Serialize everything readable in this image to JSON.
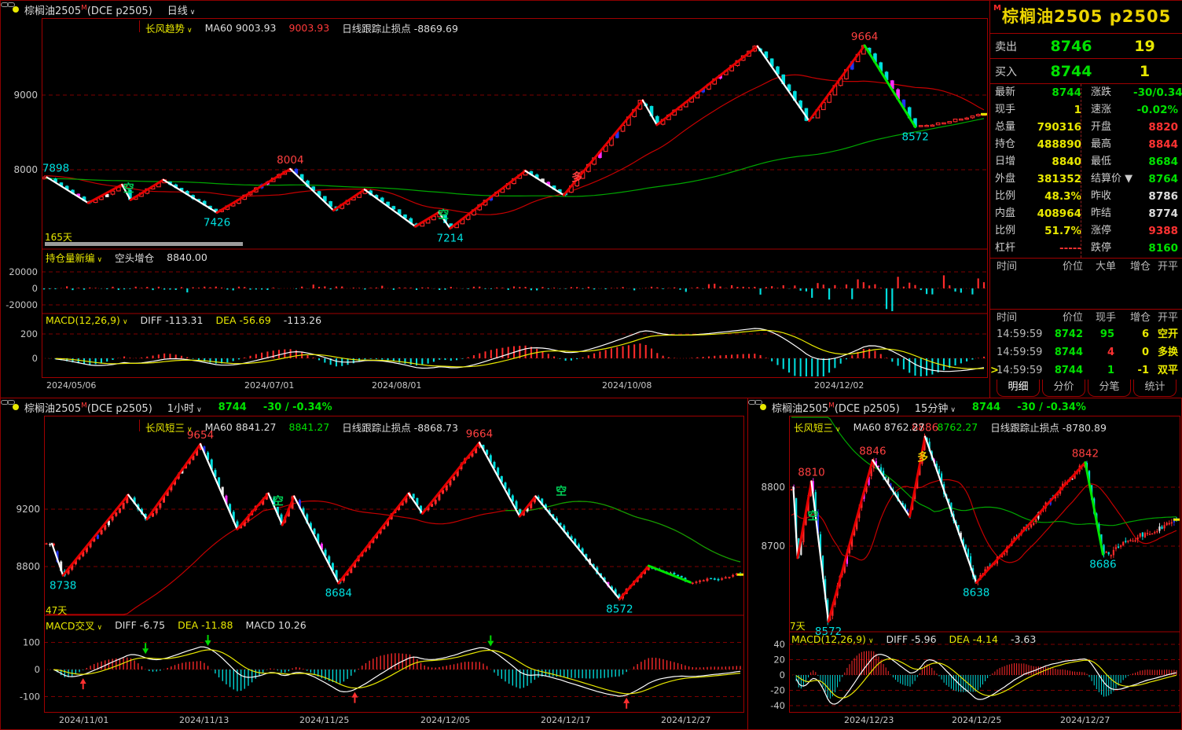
{
  "top": {
    "title": "棕榈油2505",
    "m": "M",
    "title_paren": "(DCE p2505)",
    "period": "日线",
    "ind": {
      "name": "长风趋势",
      "ma": "MA60 9003.93",
      "ma_val": "9003.93",
      "ma_val_color": "#FF3A3A",
      "stop": "日线跟踪止损点 -8869.69"
    },
    "window_label": "165天",
    "y_ticks": [
      {
        "p": 9000,
        "label": "9000"
      },
      {
        "p": 8000,
        "label": "8000"
      }
    ],
    "dates": [
      "2024/05/06",
      "2024/07/01",
      "2024/08/01",
      "2024/10/08",
      "2024/12/02"
    ],
    "pivots": [
      [
        0.003,
        7900,
        ""
      ],
      [
        0.047,
        7555,
        "W"
      ],
      [
        0.083,
        7800,
        "R"
      ],
      [
        0.092,
        7595,
        "W"
      ],
      [
        0.127,
        7865,
        "R"
      ],
      [
        0.184,
        7426,
        "W"
      ],
      [
        0.262,
        8010,
        "R"
      ],
      [
        0.308,
        7455,
        "W"
      ],
      [
        0.341,
        7735,
        "R"
      ],
      [
        0.395,
        7240,
        "W"
      ],
      [
        0.42,
        7430,
        "R"
      ],
      [
        0.432,
        7214,
        "W"
      ],
      [
        0.512,
        7985,
        "R"
      ],
      [
        0.553,
        7660,
        "W"
      ],
      [
        0.637,
        8930,
        "R"
      ],
      [
        0.652,
        8600,
        "W"
      ],
      [
        0.759,
        9655,
        "R"
      ],
      [
        0.814,
        8655,
        "W"
      ],
      [
        0.873,
        9664,
        "R"
      ],
      [
        0.927,
        8572,
        "G"
      ],
      [
        1.0,
        8744,
        ""
      ]
    ],
    "labels": [
      {
        "t": "7898",
        "xf": 0.003,
        "p": 7898,
        "c": "cyan",
        "pos": "a"
      },
      {
        "t": "7426",
        "xf": 0.184,
        "p": 7426,
        "c": "cyan",
        "pos": "b"
      },
      {
        "t": "8004",
        "xf": 0.262,
        "p": 8010,
        "c": "red",
        "pos": "a"
      },
      {
        "t": "7214",
        "xf": 0.432,
        "p": 7214,
        "c": "cyan",
        "pos": "b"
      },
      {
        "t": "9664",
        "xf": 0.873,
        "p": 9664,
        "c": "red",
        "pos": "a"
      },
      {
        "t": "8572",
        "xf": 0.927,
        "p": 8572,
        "c": "cyan",
        "pos": "b"
      }
    ],
    "markers": [
      {
        "t": "空",
        "xf": 0.09,
        "p": 7700,
        "c": "#00CC55"
      },
      {
        "t": "空",
        "xf": 0.425,
        "p": 7350,
        "c": "#00CC55"
      },
      {
        "t": "多",
        "xf": 0.567,
        "p": 7850,
        "c": "#FF4040"
      }
    ],
    "sub1": {
      "name": "持仓量新编",
      "text": "空头增仓",
      "value": "8840.00",
      "ticks": [
        {
          "v": 20000,
          "label": "20000"
        },
        {
          "v": 0,
          "label": "0"
        },
        {
          "v": -20000,
          "label": "-20000"
        }
      ]
    },
    "macd": {
      "name": "MACD(12,26,9)",
      "items": [
        [
          "DIFF -113.31",
          "w"
        ],
        [
          "DEA -56.69",
          "y"
        ],
        [
          "-113.26",
          "w"
        ]
      ],
      "ticks": [
        {
          "v": 200,
          "label": "200"
        },
        {
          "v": 0,
          "label": "0"
        }
      ]
    }
  },
  "quote": {
    "m": "M",
    "title": "棕榈油2505  p2505",
    "ask": {
      "label": "卖出",
      "price": "8746",
      "vol": "19"
    },
    "bid": {
      "label": "买入",
      "price": "8744",
      "vol": "1"
    },
    "rows": [
      [
        "最新",
        "8744",
        "g",
        "涨跌",
        "-30/0.34%",
        "g"
      ],
      [
        "现手",
        "1",
        "y",
        "速涨",
        "-0.02%",
        "g"
      ],
      [
        "总量",
        "790316",
        "y",
        "开盘",
        "8820",
        "r"
      ],
      [
        "持仓",
        "488890",
        "y",
        "最高",
        "8844",
        "r"
      ],
      [
        "日增",
        "8840",
        "y",
        "最低",
        "8684",
        "g"
      ],
      [
        "外盘",
        "381352",
        "y",
        "结算价 ▼",
        "8764",
        "g"
      ],
      [
        "比例",
        "48.3%",
        "y",
        "昨收",
        "8786",
        "w"
      ],
      [
        "内盘",
        "408964",
        "y",
        "昨结",
        "8774",
        "w"
      ],
      [
        "比例",
        "51.7%",
        "y",
        "涨停",
        "9388",
        "r"
      ],
      [
        "杠杆",
        "-----",
        "r",
        "跌停",
        "8160",
        "g"
      ]
    ],
    "t1_headers": [
      "时间",
      "价位",
      "大单",
      "增仓",
      "开平"
    ],
    "t2_headers": [
      "时间",
      "价位",
      "现手",
      "增仓",
      "开平"
    ],
    "trades": [
      {
        "time": "14:59:59",
        "price": "8742",
        "pc": "g",
        "vol": "95",
        "vc": "g",
        "oi": "6",
        "type": "空开",
        "cursor": false
      },
      {
        "time": "14:59:59",
        "price": "8744",
        "pc": "g",
        "vol": "4",
        "vc": "r",
        "oi": "0",
        "type": "多换",
        "cursor": false
      },
      {
        "time": "14:59:59",
        "price": "8744",
        "pc": "g",
        "vol": "1",
        "vc": "g",
        "oi": "-1",
        "type": "双平",
        "cursor": true
      }
    ],
    "tabs": [
      "明细",
      "分价",
      "分笔",
      "统计"
    ],
    "active_tab": 0
  },
  "bl": {
    "title": "棕榈油2505",
    "m": "M",
    "title_paren": "(DCE p2505)",
    "period": "1小时",
    "price": "8744",
    "chg": "-30 / -0.34%",
    "ind": {
      "name": "长风短三",
      "ma": "MA60 8841.27",
      "ma_val": "8841.27",
      "ma_val_color": "#00E100",
      "stop": "日线跟踪止损点 -8868.73"
    },
    "window_label": "47天",
    "y_ticks": [
      {
        "p": 9200,
        "label": "9200"
      },
      {
        "p": 8800,
        "label": "8800"
      }
    ],
    "dates": [
      "2024/11/01",
      "2024/11/13",
      "2024/11/25",
      "2024/12/05",
      "2024/12/17",
      "2024/12/27"
    ],
    "pivots": [
      [
        0.008,
        8960,
        ""
      ],
      [
        0.024,
        8738,
        "W"
      ],
      [
        0.118,
        9300,
        "R"
      ],
      [
        0.145,
        9130,
        "W"
      ],
      [
        0.222,
        9654,
        "R"
      ],
      [
        0.275,
        9060,
        "W"
      ],
      [
        0.32,
        9310,
        "R"
      ],
      [
        0.34,
        9090,
        "W"
      ],
      [
        0.357,
        9290,
        "R"
      ],
      [
        0.421,
        8684,
        "W"
      ],
      [
        0.522,
        9310,
        "R"
      ],
      [
        0.542,
        9170,
        "W"
      ],
      [
        0.624,
        9664,
        "R"
      ],
      [
        0.682,
        9150,
        "W"
      ],
      [
        0.705,
        9290,
        "R"
      ],
      [
        0.826,
        8572,
        "W"
      ],
      [
        0.868,
        8805,
        "R"
      ],
      [
        0.928,
        8690,
        "G"
      ],
      [
        1.0,
        8744,
        ""
      ]
    ],
    "labels": [
      {
        "t": "8738",
        "xf": 0.024,
        "p": 8738,
        "c": "cyan",
        "pos": "b"
      },
      {
        "t": "9654",
        "xf": 0.222,
        "p": 9654,
        "c": "red",
        "pos": "a"
      },
      {
        "t": "8684",
        "xf": 0.421,
        "p": 8684,
        "c": "cyan",
        "pos": "b"
      },
      {
        "t": "9664",
        "xf": 0.624,
        "p": 9664,
        "c": "red",
        "pos": "a"
      },
      {
        "t": "8572",
        "xf": 0.826,
        "p": 8572,
        "c": "cyan",
        "pos": "b"
      }
    ],
    "markers": [
      {
        "t": "空",
        "xf": 0.334,
        "p": 9230,
        "c": "#00CC55"
      },
      {
        "t": "空",
        "xf": 0.742,
        "p": 9300,
        "c": "#00CC55"
      }
    ],
    "macd": {
      "name": "MACD交叉",
      "items": [
        [
          "DIFF -6.75",
          "w"
        ],
        [
          "DEA -11.88",
          "y"
        ],
        [
          "MACD 10.26",
          "w"
        ]
      ],
      "ticks": [
        {
          "v": 100,
          "label": "100"
        },
        {
          "v": 0,
          "label": "0"
        },
        {
          "v": -100,
          "label": "-100"
        }
      ]
    }
  },
  "br": {
    "title": "棕榈油2505",
    "m": "M",
    "title_paren": "(DCE p2505)",
    "period": "15分钟",
    "price": "8744",
    "chg": "-30 / -0.34%",
    "ind": {
      "name": "长风短三",
      "ma": "MA60 8762.27",
      "ma_val": "8762.27",
      "ma_val_color": "#00E100",
      "stop": "日线跟踪止损点 -8780.89"
    },
    "window_label": "7天",
    "y_ticks": [
      {
        "p": 8800,
        "label": "8800"
      },
      {
        "p": 8700,
        "label": "8700"
      }
    ],
    "dates": [
      "2024/12/23",
      "2024/12/25",
      "2024/12/27"
    ],
    "pivots": [
      [
        0.005,
        8800,
        ""
      ],
      [
        0.016,
        8680,
        "W"
      ],
      [
        0.052,
        8810,
        "R"
      ],
      [
        0.096,
        8572,
        "W"
      ],
      [
        0.211,
        8846,
        "R"
      ],
      [
        0.307,
        8750,
        "W"
      ],
      [
        0.347,
        8886,
        "R"
      ],
      [
        0.48,
        8638,
        "W"
      ],
      [
        0.763,
        8842,
        "R"
      ],
      [
        0.809,
        8686,
        "G"
      ],
      [
        1.0,
        8745,
        ""
      ]
    ],
    "labels": [
      {
        "t": "8810",
        "xf": 0.052,
        "p": 8810,
        "c": "red",
        "pos": "a"
      },
      {
        "t": "8572",
        "xf": 0.096,
        "p": 8572,
        "c": "cyan",
        "pos": "b"
      },
      {
        "t": "8846",
        "xf": 0.211,
        "p": 8846,
        "c": "red",
        "pos": "a"
      },
      {
        "t": "8886",
        "xf": 0.347,
        "p": 8886,
        "c": "red",
        "pos": "a"
      },
      {
        "t": "8638",
        "xf": 0.48,
        "p": 8638,
        "c": "cyan",
        "pos": "b"
      },
      {
        "t": "8842",
        "xf": 0.763,
        "p": 8842,
        "c": "red",
        "pos": "a"
      },
      {
        "t": "8686",
        "xf": 0.809,
        "p": 8686,
        "c": "cyan",
        "pos": "b"
      }
    ],
    "markers": [
      {
        "t": "空",
        "xf": 0.056,
        "p": 8745,
        "c": "#00CC55"
      },
      {
        "t": "多",
        "xf": 0.341,
        "p": 8845,
        "c": "#E8C800"
      }
    ],
    "macd": {
      "name": "MACD(12,26,9)",
      "items": [
        [
          "DIFF -5.96",
          "w"
        ],
        [
          "DEA -4.14",
          "y"
        ],
        [
          "-3.63",
          "w"
        ]
      ],
      "ticks": [
        {
          "v": 40,
          "label": "40"
        },
        {
          "v": 20,
          "label": "20"
        },
        {
          "v": 0,
          "label": "0"
        },
        {
          "v": -20,
          "label": "-20"
        },
        {
          "v": -40,
          "label": "-40"
        }
      ]
    }
  }
}
